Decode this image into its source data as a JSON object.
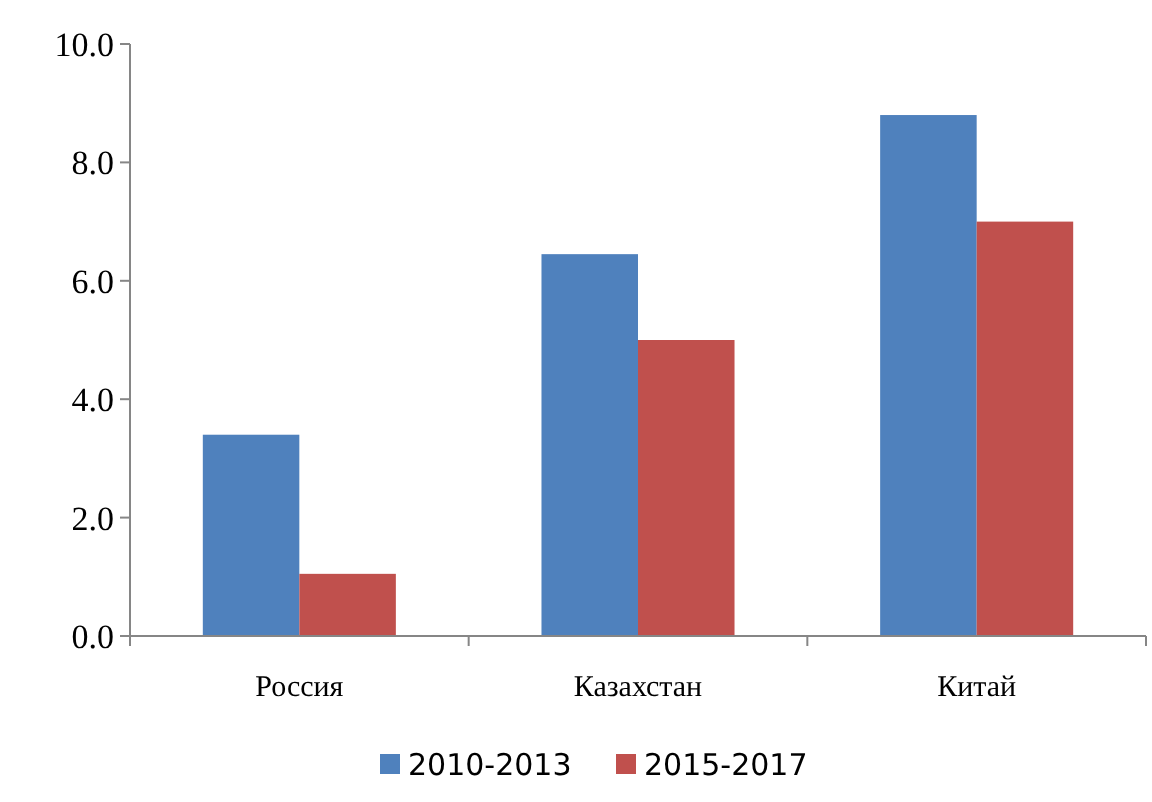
{
  "chart_data": {
    "type": "bar",
    "categories": [
      "Россия",
      "Казахстан",
      "Китай"
    ],
    "series": [
      {
        "name": "2010-2013",
        "color": "#4f81bd",
        "values": [
          3.4,
          6.45,
          8.8
        ]
      },
      {
        "name": "2015-2017",
        "color": "#c0504d",
        "values": [
          1.05,
          5.0,
          7.0
        ]
      }
    ],
    "ylim": [
      0,
      10
    ],
    "yticks": [
      {
        "value": 0,
        "label": "0.0"
      },
      {
        "value": 2,
        "label": "2.0"
      },
      {
        "value": 4,
        "label": "4.0"
      },
      {
        "value": 6,
        "label": "6.0"
      },
      {
        "value": 8,
        "label": "8.0"
      },
      {
        "value": 10,
        "label": "10.0"
      }
    ],
    "grid": false,
    "legend": "bottom"
  }
}
